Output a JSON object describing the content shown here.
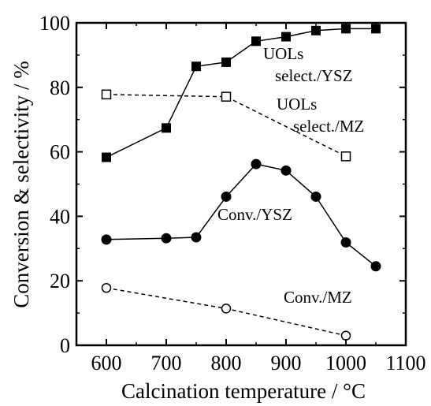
{
  "chart_data": {
    "type": "line",
    "xlabel": "Calcination temperature / °C",
    "ylabel": "Conversion & selectivity / %",
    "xlim": [
      550,
      1100
    ],
    "ylim": [
      0,
      100
    ],
    "x_ticks": [
      "600",
      "700",
      "800",
      "900",
      "1000",
      "1100"
    ],
    "y_ticks": [
      "0",
      "20",
      "40",
      "60",
      "80",
      "100"
    ],
    "grid": false,
    "legend": "none",
    "annotations": {
      "uols_ysz": [
        "UOLs",
        "select./YSZ"
      ],
      "uols_mz": [
        "UOLs",
        "select./MZ"
      ],
      "conv_ysz": "Conv./YSZ",
      "conv_mz": "Conv./MZ"
    },
    "series": [
      {
        "marker": "filled-square",
        "line": "solid",
        "x": [
          600,
          700,
          750,
          800,
          850,
          900,
          950,
          1000,
          1050
        ],
        "values": [
          58.3,
          67.4,
          86.5,
          87.8,
          94.3,
          95.7,
          97.6,
          98.2,
          98.2
        ]
      },
      {
        "marker": "open-square",
        "line": "dashed",
        "x": [
          600,
          800,
          1000
        ],
        "values": [
          77.8,
          77.1,
          58.6
        ]
      },
      {
        "marker": "filled-circle",
        "line": "solid",
        "x": [
          600,
          700,
          750,
          800,
          850,
          900,
          950,
          1000,
          1050
        ],
        "values": [
          32.8,
          33.2,
          33.5,
          46.1,
          56.2,
          54.2,
          46.1,
          31.9,
          24.5
        ]
      },
      {
        "marker": "open-circle",
        "line": "dashed",
        "x": [
          600,
          800,
          1000
        ],
        "values": [
          17.8,
          11.4,
          3.0
        ]
      }
    ]
  }
}
